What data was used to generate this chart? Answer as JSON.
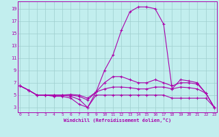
{
  "xlabel": "Windchill (Refroidissement éolien,°C)",
  "background_color": "#c2eeee",
  "line_color": "#aa00aa",
  "grid_color": "#9ecece",
  "x_ticks": [
    0,
    1,
    2,
    3,
    4,
    5,
    6,
    7,
    8,
    9,
    10,
    11,
    12,
    13,
    14,
    15,
    16,
    17,
    18,
    19,
    20,
    21,
    22,
    23
  ],
  "y_ticks": [
    3,
    5,
    7,
    9,
    11,
    13,
    15,
    17,
    19
  ],
  "xlim": [
    -0.3,
    23.3
  ],
  "ylim": [
    2.2,
    20.2
  ],
  "curves": [
    [
      6.5,
      5.8,
      5.0,
      5.0,
      5.0,
      5.0,
      4.8,
      4.3,
      3.0,
      5.5,
      9.0,
      11.5,
      15.5,
      18.5,
      19.3,
      19.3,
      19.0,
      16.5,
      6.0,
      7.5,
      7.3,
      7.0,
      5.3,
      3.0
    ],
    [
      6.5,
      5.8,
      5.0,
      5.0,
      5.0,
      5.0,
      5.0,
      4.8,
      4.2,
      5.5,
      7.0,
      8.0,
      8.0,
      7.5,
      7.0,
      7.0,
      7.5,
      7.0,
      6.5,
      7.0,
      7.0,
      6.8,
      5.3,
      3.0
    ],
    [
      6.5,
      5.8,
      5.0,
      5.0,
      5.0,
      5.0,
      5.1,
      5.0,
      4.5,
      5.5,
      6.0,
      6.3,
      6.3,
      6.2,
      6.0,
      6.0,
      6.3,
      6.3,
      6.0,
      6.3,
      6.2,
      6.0,
      5.3,
      3.0
    ],
    [
      6.5,
      5.8,
      5.0,
      5.0,
      4.8,
      4.8,
      4.5,
      3.5,
      3.0,
      5.0,
      5.0,
      5.0,
      5.0,
      5.0,
      5.0,
      5.0,
      5.0,
      5.0,
      4.5,
      4.5,
      4.5,
      4.5,
      4.5,
      3.0
    ]
  ]
}
